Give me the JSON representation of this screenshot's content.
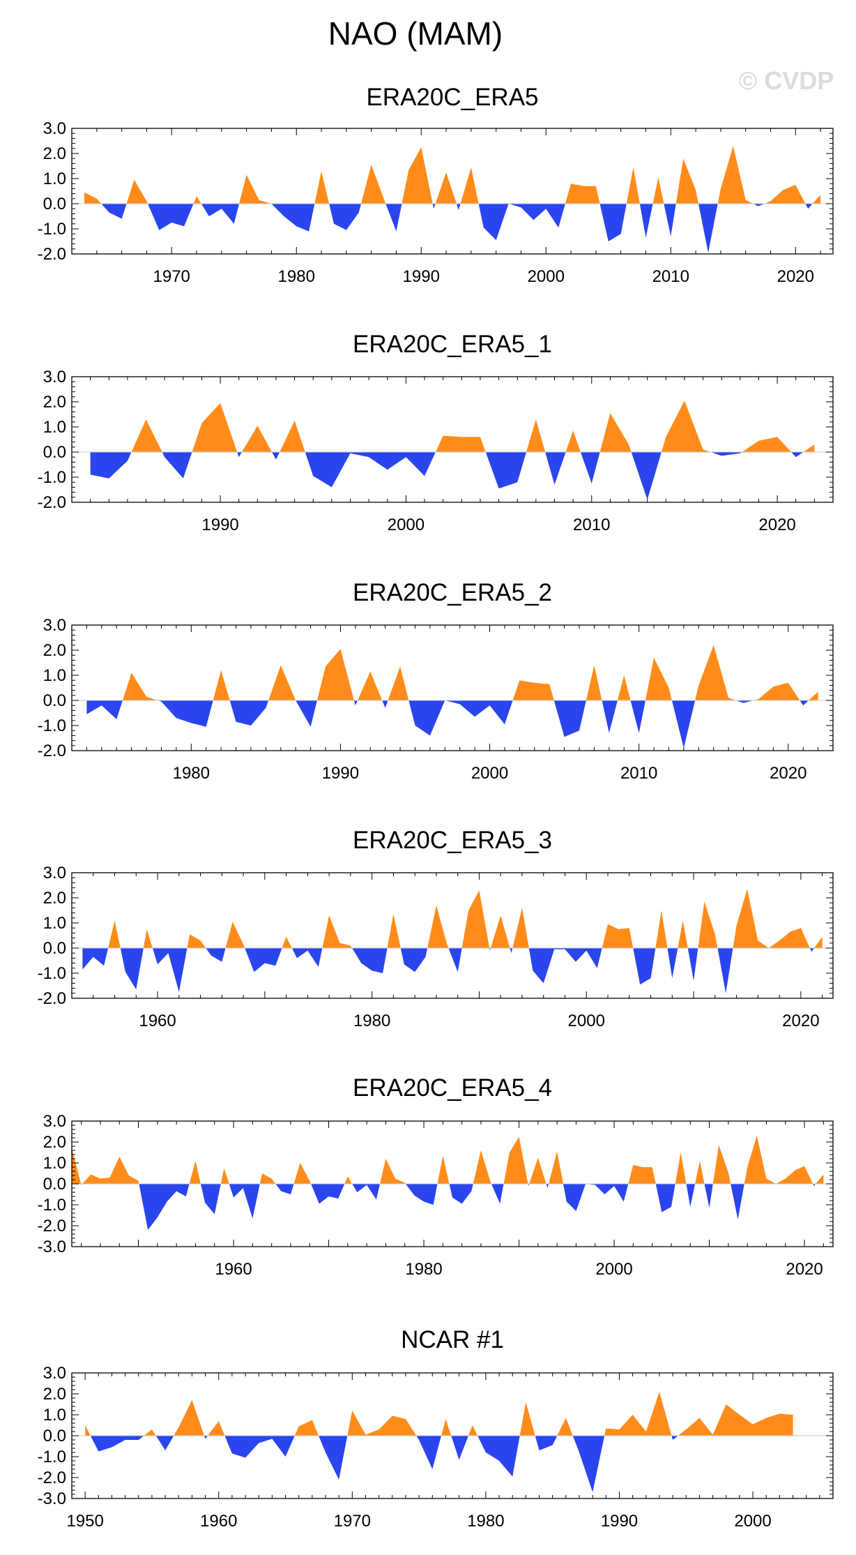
{
  "figure": {
    "title": "NAO (MAM)",
    "watermark": "© CVDP",
    "colors": {
      "positive": "#ff8c1a",
      "negative": "#2a44ee",
      "axis": "#000000",
      "zero_line": "#c8c8c8"
    }
  },
  "chart_data": [
    {
      "type": "area",
      "title": "ERA20C_ERA5",
      "xlim": [
        1962,
        2023
      ],
      "ylim": [
        -2.0,
        3.0
      ],
      "yticks": [
        -2.0,
        -1.0,
        0.0,
        1.0,
        2.0,
        3.0
      ],
      "ytick_labels": [
        "-2.0",
        "-1.0",
        "0.0",
        "1.0",
        "2.0",
        "3.0"
      ],
      "xticks": [
        1970,
        1980,
        1990,
        2000,
        2010,
        2020
      ],
      "xtick_labels": [
        "1970",
        "1980",
        "1990",
        "2000",
        "2010",
        "2020"
      ],
      "x_start": 1963,
      "values": [
        0.45,
        0.2,
        -0.35,
        -0.6,
        0.95,
        0.1,
        -1.05,
        -0.75,
        -0.9,
        0.3,
        -0.5,
        -0.2,
        -0.8,
        1.15,
        0.15,
        0.0,
        -0.5,
        -0.9,
        -1.1,
        1.3,
        -0.8,
        -1.05,
        -0.35,
        1.55,
        0.2,
        -1.1,
        1.35,
        2.25,
        -0.2,
        1.25,
        -0.25,
        1.45,
        -0.95,
        -1.45,
        0.0,
        -0.15,
        -0.65,
        -0.2,
        -0.95,
        0.8,
        0.7,
        0.7,
        -1.5,
        -1.2,
        1.45,
        -1.35,
        1.05,
        -1.3,
        1.8,
        0.55,
        -1.95,
        0.6,
        2.3,
        0.15,
        -0.1,
        0.1,
        0.55,
        0.75,
        -0.2,
        0.35
      ]
    },
    {
      "type": "area",
      "title": "ERA20C_ERA5_1",
      "xlim": [
        1982,
        2023
      ],
      "ylim": [
        -2.0,
        3.0
      ],
      "yticks": [
        -2.0,
        -1.0,
        0.0,
        1.0,
        2.0,
        3.0
      ],
      "ytick_labels": [
        "-2.0",
        "-1.0",
        "0.0",
        "1.0",
        "2.0",
        "3.0"
      ],
      "xticks": [
        1990,
        2000,
        2010,
        2020
      ],
      "xtick_labels": [
        "1990",
        "2000",
        "2010",
        "2020"
      ],
      "x_start": 1983,
      "values": [
        -0.9,
        -1.05,
        -0.35,
        1.3,
        -0.2,
        -1.05,
        1.15,
        1.95,
        -0.2,
        1.05,
        -0.3,
        1.25,
        -0.95,
        -1.4,
        -0.05,
        -0.2,
        -0.7,
        -0.2,
        -0.95,
        0.65,
        0.6,
        0.6,
        -1.45,
        -1.2,
        1.3,
        -1.3,
        0.85,
        -1.25,
        1.55,
        0.3,
        -1.9,
        0.6,
        2.05,
        0.1,
        -0.15,
        -0.05,
        0.45,
        0.6,
        -0.2,
        0.3
      ]
    },
    {
      "type": "area",
      "title": "ERA20C_ERA5_2",
      "xlim": [
        1972,
        2023
      ],
      "ylim": [
        -2.0,
        3.0
      ],
      "yticks": [
        -2.0,
        -1.0,
        0.0,
        1.0,
        2.0,
        3.0
      ],
      "ytick_labels": [
        "-2.0",
        "-1.0",
        "0.0",
        "1.0",
        "2.0",
        "3.0"
      ],
      "xticks": [
        1980,
        1990,
        2000,
        2010,
        2020
      ],
      "xtick_labels": [
        "1980",
        "1990",
        "2000",
        "2010",
        "2020"
      ],
      "x_start": 1973,
      "values": [
        -0.55,
        -0.2,
        -0.75,
        1.1,
        0.15,
        -0.05,
        -0.7,
        -0.9,
        -1.05,
        1.2,
        -0.85,
        -1.0,
        -0.3,
        1.4,
        0.0,
        -1.05,
        1.35,
        2.05,
        -0.2,
        1.15,
        -0.3,
        1.35,
        -1.0,
        -1.4,
        0.0,
        -0.15,
        -0.65,
        -0.2,
        -0.95,
        0.8,
        0.7,
        0.65,
        -1.45,
        -1.2,
        1.4,
        -1.3,
        1.0,
        -1.3,
        1.7,
        0.5,
        -1.9,
        0.6,
        2.2,
        0.1,
        -0.1,
        0.05,
        0.55,
        0.7,
        -0.2,
        0.35
      ]
    },
    {
      "type": "area",
      "title": "ERA20C_ERA5_3",
      "xlim": [
        1952,
        2023
      ],
      "ylim": [
        -2.0,
        3.0
      ],
      "yticks": [
        -2.0,
        -1.0,
        0.0,
        1.0,
        2.0,
        3.0
      ],
      "ytick_labels": [
        "-2.0",
        "-1.0",
        "0.0",
        "1.0",
        "2.0",
        "3.0"
      ],
      "xticks": [
        1960,
        1980,
        2000,
        2020
      ],
      "xtick_labels": [
        "1960",
        "1980",
        "2000",
        "2020"
      ],
      "x_start": 1953,
      "values": [
        -0.85,
        -0.35,
        -0.7,
        1.1,
        -0.95,
        -1.65,
        0.75,
        -0.65,
        -0.2,
        -1.75,
        0.55,
        0.3,
        -0.3,
        -0.55,
        1.05,
        0.15,
        -0.95,
        -0.6,
        -0.7,
        0.45,
        -0.4,
        -0.1,
        -0.75,
        1.3,
        0.2,
        0.1,
        -0.6,
        -0.9,
        -1.0,
        1.35,
        -0.65,
        -0.95,
        -0.35,
        1.7,
        0.15,
        -0.95,
        1.5,
        2.3,
        -0.1,
        1.3,
        -0.2,
        1.6,
        -0.9,
        -1.4,
        -0.05,
        -0.05,
        -0.55,
        -0.1,
        -0.8,
        0.95,
        0.75,
        0.8,
        -1.45,
        -1.2,
        1.5,
        -1.2,
        1.1,
        -1.3,
        1.85,
        0.55,
        -1.8,
        0.9,
        2.35,
        0.3,
        0.0,
        0.3,
        0.65,
        0.8,
        -0.15,
        0.45
      ]
    },
    {
      "type": "area",
      "title": "ERA20C_ERA5_4",
      "xlim": [
        1943,
        2023
      ],
      "ylim": [
        -3.0,
        3.0
      ],
      "yticks": [
        -3.0,
        -2.0,
        -1.0,
        0.0,
        1.0,
        2.0,
        3.0
      ],
      "ytick_labels": [
        "-3.0",
        "-2.0",
        "-1.0",
        "0.0",
        "1.0",
        "2.0",
        "3.0"
      ],
      "xticks": [
        1960,
        1980,
        2000,
        2020
      ],
      "xtick_labels": [
        "1960",
        "1980",
        "2000",
        "2020"
      ],
      "x_start": 1943,
      "values": [
        1.7,
        -0.05,
        0.45,
        0.25,
        0.3,
        1.3,
        0.4,
        0.15,
        -2.2,
        -1.6,
        -0.85,
        -0.35,
        -0.6,
        1.1,
        -0.9,
        -1.45,
        0.75,
        -0.65,
        -0.2,
        -1.65,
        0.5,
        0.25,
        -0.35,
        -0.5,
        1.0,
        0.15,
        -0.95,
        -0.6,
        -0.7,
        0.35,
        -0.4,
        -0.05,
        -0.75,
        1.2,
        0.25,
        0.05,
        -0.55,
        -0.85,
        -1.0,
        1.35,
        -0.65,
        -0.95,
        -0.35,
        1.6,
        0.1,
        -0.95,
        1.5,
        2.25,
        -0.1,
        1.25,
        -0.2,
        1.55,
        -0.85,
        -1.3,
        0.0,
        -0.05,
        -0.5,
        -0.1,
        -0.85,
        0.9,
        0.8,
        0.8,
        -1.35,
        -1.1,
        1.5,
        -1.1,
        1.1,
        -1.15,
        1.85,
        0.55,
        -1.7,
        0.8,
        2.3,
        0.25,
        0.0,
        0.25,
        0.65,
        0.85,
        -0.1,
        0.45
      ]
    },
    {
      "type": "area",
      "title": "NCAR #1",
      "xlim": [
        1949,
        2006
      ],
      "ylim": [
        -3.0,
        3.0
      ],
      "yticks": [
        -3.0,
        -2.0,
        -1.0,
        0.0,
        1.0,
        2.0,
        3.0
      ],
      "ytick_labels": [
        "-3.0",
        "-2.0",
        "-1.0",
        "0.0",
        "1.0",
        "2.0",
        "3.0"
      ],
      "xticks": [
        1950,
        1960,
        1970,
        1980,
        1990,
        2000
      ],
      "xtick_labels": [
        "1950",
        "1960",
        "1970",
        "1980",
        "1990",
        "2000"
      ],
      "x_start": 1950,
      "values": [
        0.5,
        -0.75,
        -0.55,
        -0.2,
        -0.2,
        0.3,
        -0.7,
        0.4,
        1.7,
        -0.15,
        0.7,
        -0.85,
        -1.05,
        -0.35,
        -0.15,
        -1.0,
        0.45,
        0.75,
        -0.8,
        -2.1,
        1.2,
        0.05,
        0.3,
        0.95,
        0.8,
        -0.2,
        -1.6,
        0.8,
        -1.15,
        0.5,
        -0.8,
        -1.2,
        -1.95,
        1.6,
        -0.7,
        -0.45,
        0.85,
        -0.8,
        -2.7,
        0.35,
        0.3,
        1.0,
        0.2,
        2.1,
        -0.2,
        0.3,
        0.85,
        0.05,
        1.5,
        1.0,
        0.55,
        0.85,
        1.05,
        1.0
      ]
    }
  ]
}
